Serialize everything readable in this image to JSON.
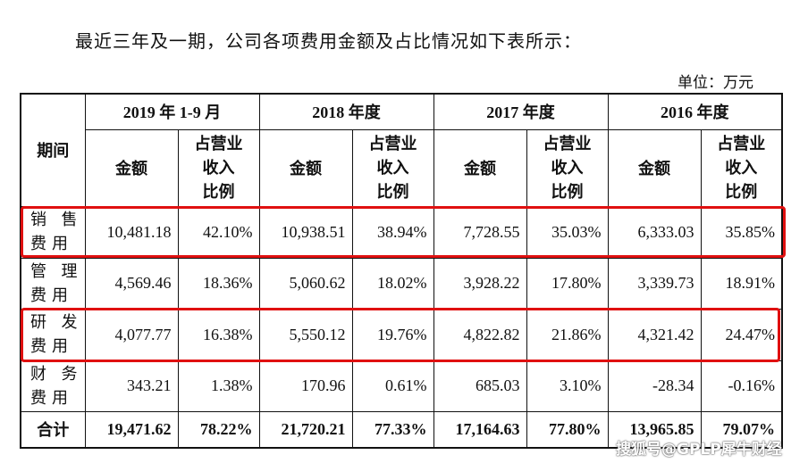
{
  "intro_text": "最近三年及一期，公司各项费用金额及占比情况如下表所示：",
  "unit_text": "单位：万元",
  "table": {
    "period_label": "期间",
    "periods": [
      "2019 年 1-9 月",
      "2018 年度",
      "2017 年度",
      "2016 年度"
    ],
    "amount_label": "金额",
    "ratio_label_lines": [
      "占营业",
      "收入",
      "比例"
    ],
    "rows": [
      {
        "label_lines": [
          "销 售",
          "费用"
        ],
        "cells": [
          "10,481.18",
          "42.10%",
          "10,938.51",
          "38.94%",
          "7,728.55",
          "35.03%",
          "6,333.03",
          "35.85%"
        ]
      },
      {
        "label_lines": [
          "管 理",
          "费用"
        ],
        "cells": [
          "4,569.46",
          "18.36%",
          "5,060.62",
          "18.02%",
          "3,928.22",
          "17.80%",
          "3,339.73",
          "18.91%"
        ]
      },
      {
        "label_lines": [
          "研 发",
          "费用"
        ],
        "cells": [
          "4,077.77",
          "16.38%",
          "5,550.12",
          "19.76%",
          "4,822.82",
          "21.86%",
          "4,321.42",
          "24.47%"
        ]
      },
      {
        "label_lines": [
          "财 务",
          "费用"
        ],
        "cells": [
          "343.21",
          "1.38%",
          "170.96",
          "0.61%",
          "685.03",
          "3.10%",
          "-28.34",
          "-0.16%"
        ]
      }
    ],
    "total": {
      "label": "合计",
      "cells": [
        "19,471.62",
        "78.22%",
        "21,720.21",
        "77.33%",
        "17,164.63",
        "77.80%",
        "13,965.85",
        "79.07%"
      ]
    }
  },
  "highlight_color": "#e01010",
  "watermark_text": "搜狐号@GPLP犀牛财经"
}
